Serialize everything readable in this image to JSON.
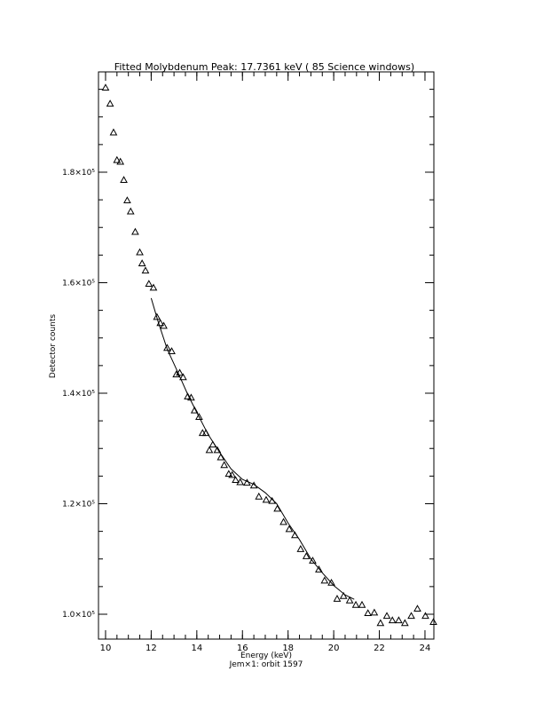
{
  "chart_data": {
    "type": "scatter",
    "title": "Fitted Molybdenum Peak:       17.7361 keV (      85 Science windows)",
    "x_label": "Energy (keV)",
    "subtitle": "Jem×1: orbit 1597",
    "y_label": "Detector counts",
    "xlim": [
      9.69,
      24.39
    ],
    "ylim": [
      95500,
      198150
    ],
    "xticks": [
      10,
      12,
      14,
      16,
      18,
      20,
      22,
      24
    ],
    "yticks": [
      {
        "value": 100000,
        "label": "1.0×10⁵"
      },
      {
        "value": 120000,
        "label": "1.2×10⁵"
      },
      {
        "value": 140000,
        "label": "1.4×10⁵"
      },
      {
        "value": 160000,
        "label": "1.6×10⁵"
      },
      {
        "value": 180000,
        "label": "1.8×10⁵"
      }
    ],
    "color": "#000000",
    "points": {
      "x": [
        10.0,
        10.2,
        10.35,
        10.5,
        10.65,
        10.8,
        10.95,
        11.1,
        11.3,
        11.5,
        11.6,
        11.75,
        11.9,
        12.1,
        12.25,
        12.4,
        12.55,
        12.7,
        12.9,
        13.1,
        13.25,
        13.4,
        13.6,
        13.75,
        13.9,
        14.1,
        14.25,
        14.4,
        14.55,
        14.7,
        14.9,
        15.05,
        15.2,
        15.4,
        15.55,
        15.7,
        15.9,
        16.2,
        16.5,
        16.72,
        17.04,
        17.3,
        17.53,
        17.8,
        18.05,
        18.3,
        18.55,
        18.8,
        19.08,
        19.35,
        19.6,
        19.9,
        20.15,
        20.43,
        20.7,
        20.97,
        21.24,
        21.5,
        21.78,
        22.05,
        22.33,
        22.57,
        22.85,
        23.12,
        23.4,
        23.67,
        24.02,
        24.37
      ],
      "values": [
        195300,
        192400,
        187200,
        182200,
        181900,
        178600,
        174900,
        172900,
        169200,
        165500,
        163500,
        162200,
        159800,
        159100,
        153800,
        152700,
        152200,
        148200,
        147600,
        143400,
        143700,
        142900,
        139400,
        139200,
        136900,
        135700,
        132800,
        132800,
        129700,
        130700,
        129700,
        128400,
        127000,
        125400,
        125200,
        124300,
        123900,
        123800,
        123300,
        121300,
        120700,
        120500,
        119100,
        116700,
        115400,
        114300,
        111800,
        110500,
        109700,
        108100,
        106100,
        105700,
        102800,
        103300,
        102500,
        101700,
        101700,
        100200,
        100300,
        98400,
        99700,
        98900,
        98900,
        98400,
        99700,
        101000,
        99700,
        98600
      ]
    },
    "fit": {
      "x": [
        12.0,
        12.3,
        12.7,
        13.2,
        13.6,
        14.0,
        14.5,
        15.0,
        15.5,
        16.0,
        16.5,
        17.0,
        17.5,
        18.0,
        18.5,
        19.0,
        19.5,
        20.0,
        20.5,
        20.9
      ],
      "values": [
        157200,
        153000,
        148000,
        143500,
        139800,
        136500,
        132500,
        129300,
        126300,
        124400,
        123500,
        122000,
        120000,
        116500,
        113500,
        110000,
        107500,
        105200,
        103500,
        102700
      ]
    }
  }
}
